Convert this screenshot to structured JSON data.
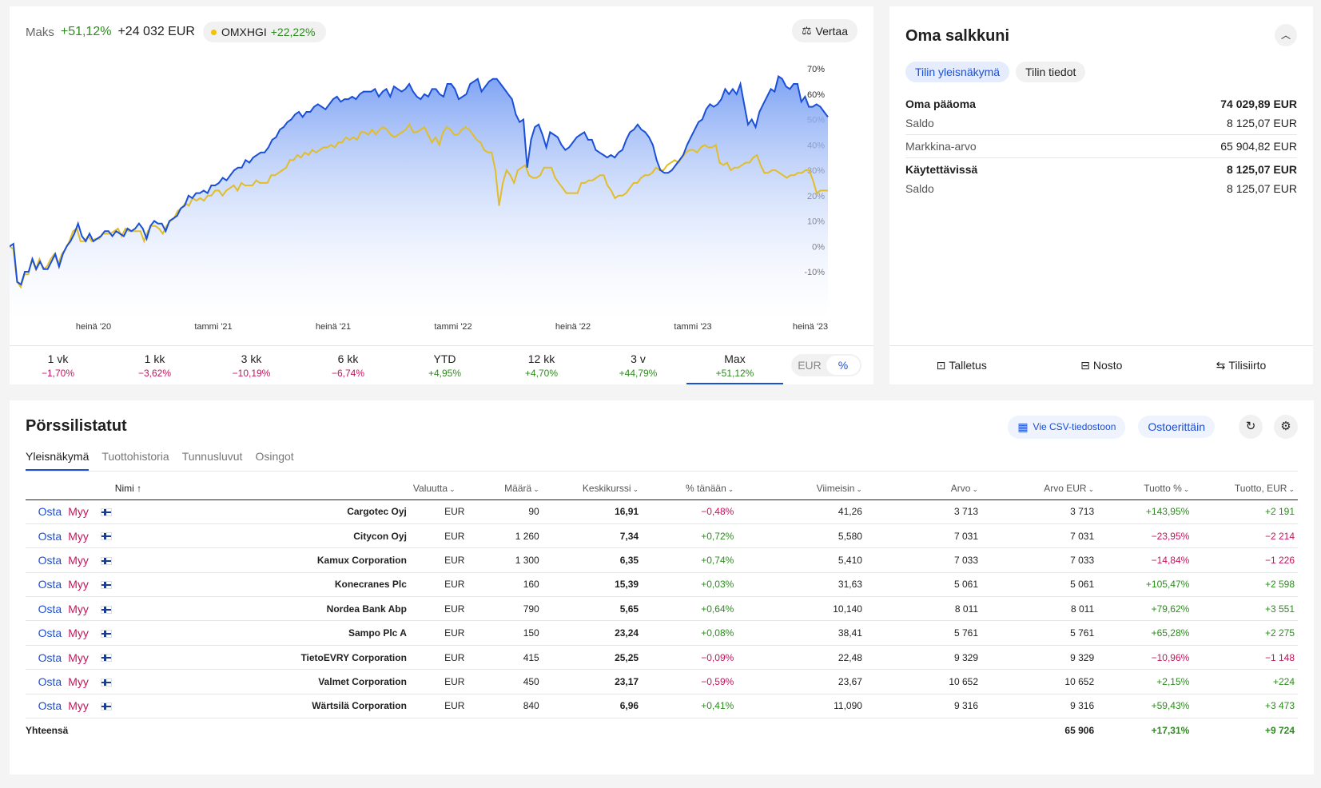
{
  "chart_header": {
    "label": "Maks",
    "pct": "+51,12%",
    "amount": "+24 032 EUR",
    "benchmark_name": "OMXHGI",
    "benchmark_pct": "+22,22%",
    "compare_label": "Vertaa",
    "compare_icon": "scale-icon"
  },
  "chart_data": {
    "type": "line",
    "ylim": [
      -15,
      72
    ],
    "yticks": [
      70,
      60,
      50,
      40,
      30,
      20,
      10,
      0,
      -10
    ],
    "ytick_labels": [
      "70%",
      "60%",
      "50%",
      "40%",
      "30%",
      "20%",
      "10%",
      "0%",
      "-10%"
    ],
    "xtick_labels": [
      "heinä '20",
      "tammi '21",
      "heinä '21",
      "tammi '22",
      "heinä '22",
      "tammi '23",
      "heinä '23"
    ],
    "series": [
      {
        "color": "#1a4fd8",
        "fill": true,
        "values": [
          0,
          1,
          -14,
          -15,
          -10,
          -10,
          -5,
          -9,
          -6,
          -9,
          -9,
          -6,
          -3,
          -8,
          -3,
          0,
          2,
          5,
          9,
          4,
          2,
          5,
          2,
          3,
          4,
          6,
          6,
          4,
          6,
          5,
          4,
          7,
          6,
          7,
          9,
          7,
          3,
          8,
          10,
          9,
          9,
          6,
          10,
          11,
          12,
          15,
          16,
          20,
          19,
          21,
          21,
          22,
          21,
          24,
          24,
          25,
          27,
          26,
          28,
          30,
          31,
          31,
          34,
          33,
          35,
          36,
          37,
          37,
          39,
          42,
          43,
          46,
          47,
          49,
          50,
          52,
          53,
          51,
          53,
          53,
          55,
          56,
          55,
          54,
          56,
          58,
          59,
          57,
          58,
          58,
          59,
          58,
          60,
          61,
          61,
          61,
          62,
          59,
          61,
          62,
          59,
          63,
          62,
          61,
          62,
          64,
          61,
          59,
          58,
          60,
          59,
          62,
          62,
          60,
          59,
          64,
          64,
          62,
          58,
          59,
          60,
          64,
          65,
          66,
          61,
          63,
          65,
          66,
          66,
          64,
          62,
          60,
          58,
          52,
          49,
          50,
          31,
          42,
          47,
          48,
          44,
          39,
          45,
          44,
          43,
          40,
          38,
          39,
          41,
          43,
          44,
          45,
          42,
          42,
          38,
          37,
          36,
          35,
          36,
          35,
          37,
          38,
          42,
          45,
          46,
          48,
          46,
          45,
          43,
          40,
          34,
          30,
          29,
          29,
          30,
          32,
          34,
          36,
          40,
          43,
          46,
          49,
          50,
          54,
          56,
          55,
          56,
          58,
          62,
          60,
          62,
          60,
          64,
          56,
          48,
          50,
          47,
          53,
          56,
          59,
          62,
          61,
          67,
          66,
          63,
          62,
          64,
          64,
          57,
          59,
          55,
          55,
          56,
          55,
          53,
          51
        ]
      },
      {
        "color": "#e2bd2a",
        "fill": false,
        "values": [
          0,
          -1,
          -14,
          -16,
          -11,
          -11,
          -5,
          -9,
          -5,
          -9,
          -8,
          -5,
          -3,
          -7,
          -3,
          -1,
          2,
          6,
          7,
          2,
          2,
          4,
          2,
          3,
          3,
          5,
          5,
          5,
          6,
          7,
          4,
          7,
          6,
          6,
          6,
          6,
          2,
          6,
          8,
          8,
          7,
          5,
          8,
          10,
          11,
          14,
          15,
          17,
          16,
          19,
          18,
          19,
          18,
          20,
          20,
          22,
          22,
          20,
          22,
          23,
          24,
          22,
          25,
          24,
          24,
          24,
          26,
          25,
          25,
          25,
          28,
          28,
          29,
          30,
          31,
          34,
          34,
          36,
          35,
          37,
          36,
          38,
          37,
          38,
          39,
          39,
          40,
          39,
          41,
          41,
          43,
          42,
          43,
          42,
          45,
          45,
          44,
          46,
          44,
          46,
          47,
          46,
          44,
          43,
          44,
          45,
          46,
          48,
          45,
          45,
          46,
          47,
          44,
          41,
          43,
          40,
          45,
          47,
          46,
          44,
          44,
          46,
          47,
          46,
          44,
          42,
          41,
          38,
          37,
          37,
          30,
          16,
          25,
          30,
          28,
          25,
          30,
          31,
          32,
          28,
          27,
          27,
          28,
          31,
          31,
          31,
          27,
          25,
          23,
          21,
          21,
          21,
          21,
          25,
          25,
          26,
          26,
          27,
          28,
          28,
          24,
          22,
          19,
          20,
          20,
          21,
          23,
          25,
          25,
          27,
          28,
          28,
          29,
          31,
          30,
          30,
          32,
          33,
          34,
          33,
          35,
          37,
          38,
          38,
          37,
          39,
          40,
          39,
          39,
          40,
          33,
          32,
          33,
          30,
          31,
          31,
          32,
          33,
          33,
          35,
          36,
          32,
          29,
          29,
          30,
          30,
          29,
          28,
          27,
          28,
          28,
          29,
          29,
          30,
          30,
          26,
          21,
          22,
          22,
          22
        ]
      }
    ]
  },
  "periods": [
    {
      "label": "1 vk",
      "value": "−1,70%",
      "sign": "neg"
    },
    {
      "label": "1 kk",
      "value": "−3,62%",
      "sign": "neg"
    },
    {
      "label": "3 kk",
      "value": "−10,19%",
      "sign": "neg"
    },
    {
      "label": "6 kk",
      "value": "−6,74%",
      "sign": "neg"
    },
    {
      "label": "YTD",
      "value": "+4,95%",
      "sign": "pos"
    },
    {
      "label": "12 kk",
      "value": "+4,70%",
      "sign": "pos"
    },
    {
      "label": "3 v",
      "value": "+44,79%",
      "sign": "pos"
    },
    {
      "label": "Max",
      "value": "+51,12%",
      "sign": "pos",
      "active": true
    }
  ],
  "toggle": {
    "eur": "EUR",
    "pct": "%"
  },
  "portfolio": {
    "title": "Oma salkkuni",
    "tabs": [
      "Tilin yleisnäkymä",
      "Tilin tiedot"
    ],
    "equity_label": "Oma pääoma",
    "equity_value": "74 029,89 EUR",
    "balance_label": "Saldo",
    "balance_value": "8 125,07 EUR",
    "market_label": "Markkina-arvo",
    "market_value": "65 904,82 EUR",
    "available_label": "Käytettävissä",
    "available_value": "8 125,07 EUR",
    "balance2_label": "Saldo",
    "balance2_value": "8 125,07 EUR",
    "actions": [
      "Talletus",
      "Nosto",
      "Tilisiirto"
    ]
  },
  "holdings": {
    "title": "Pörssilistatut",
    "csv_label": "Vie CSV-tiedostoon",
    "orders_label": "Ostoerittäin",
    "tabs": [
      "Yleisnäkymä",
      "Tuottohistoria",
      "Tunnusluvut",
      "Osingot"
    ],
    "buy_label": "Osta",
    "sell_label": "Myy",
    "columns": [
      "Nimi",
      "Valuutta",
      "Määrä",
      "Keskikurssi",
      "% tänään",
      "Viimeisin",
      "Arvo",
      "Arvo EUR",
      "Tuotto %",
      "Tuotto, EUR"
    ],
    "rows": [
      {
        "name": "Cargotec Oyj",
        "currency": "EUR",
        "qty": "90",
        "avg": "16,91",
        "today": "−0,48%",
        "today_sign": "neg",
        "last": "41,26",
        "value": "3 713",
        "value_eur": "3 713",
        "ret_pct": "+143,95%",
        "ret_sign": "pos",
        "ret_eur": "+2 191"
      },
      {
        "name": "Citycon Oyj",
        "currency": "EUR",
        "qty": "1 260",
        "avg": "7,34",
        "today": "+0,72%",
        "today_sign": "pos",
        "last": "5,580",
        "value": "7 031",
        "value_eur": "7 031",
        "ret_pct": "−23,95%",
        "ret_sign": "neg",
        "ret_eur": "−2 214"
      },
      {
        "name": "Kamux Corporation",
        "currency": "EUR",
        "qty": "1 300",
        "avg": "6,35",
        "today": "+0,74%",
        "today_sign": "pos",
        "last": "5,410",
        "value": "7 033",
        "value_eur": "7 033",
        "ret_pct": "−14,84%",
        "ret_sign": "neg",
        "ret_eur": "−1 226"
      },
      {
        "name": "Konecranes Plc",
        "currency": "EUR",
        "qty": "160",
        "avg": "15,39",
        "today": "+0,03%",
        "today_sign": "pos",
        "last": "31,63",
        "value": "5 061",
        "value_eur": "5 061",
        "ret_pct": "+105,47%",
        "ret_sign": "pos",
        "ret_eur": "+2 598"
      },
      {
        "name": "Nordea Bank Abp",
        "currency": "EUR",
        "qty": "790",
        "avg": "5,65",
        "today": "+0,64%",
        "today_sign": "pos",
        "last": "10,140",
        "value": "8 011",
        "value_eur": "8 011",
        "ret_pct": "+79,62%",
        "ret_sign": "pos",
        "ret_eur": "+3 551"
      },
      {
        "name": "Sampo Plc A",
        "currency": "EUR",
        "qty": "150",
        "avg": "23,24",
        "today": "+0,08%",
        "today_sign": "pos",
        "last": "38,41",
        "value": "5 761",
        "value_eur": "5 761",
        "ret_pct": "+65,28%",
        "ret_sign": "pos",
        "ret_eur": "+2 275"
      },
      {
        "name": "TietoEVRY Corporation",
        "currency": "EUR",
        "qty": "415",
        "avg": "25,25",
        "today": "−0,09%",
        "today_sign": "neg",
        "last": "22,48",
        "value": "9 329",
        "value_eur": "9 329",
        "ret_pct": "−10,96%",
        "ret_sign": "neg",
        "ret_eur": "−1 148"
      },
      {
        "name": "Valmet Corporation",
        "currency": "EUR",
        "qty": "450",
        "avg": "23,17",
        "today": "−0,59%",
        "today_sign": "neg",
        "last": "23,67",
        "value": "10 652",
        "value_eur": "10 652",
        "ret_pct": "+2,15%",
        "ret_sign": "pos",
        "ret_eur": "+224"
      },
      {
        "name": "Wärtsilä Corporation",
        "currency": "EUR",
        "qty": "840",
        "avg": "6,96",
        "today": "+0,41%",
        "today_sign": "pos",
        "last": "11,090",
        "value": "9 316",
        "value_eur": "9 316",
        "ret_pct": "+59,43%",
        "ret_sign": "pos",
        "ret_eur": "+3 473"
      }
    ],
    "total": {
      "label": "Yhteensä",
      "value_eur": "65 906",
      "ret_pct": "+17,31%",
      "ret_eur": "+9 724"
    }
  }
}
